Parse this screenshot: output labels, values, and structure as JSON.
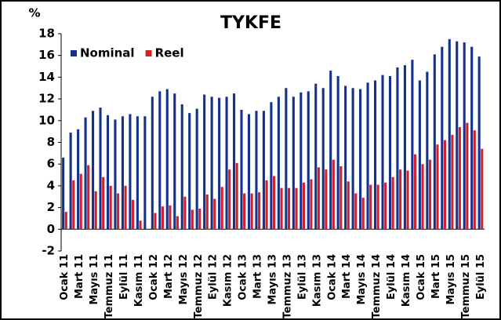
{
  "chart_data": {
    "type": "bar",
    "title": "TYKFE",
    "y_label": "%",
    "categories": [
      "Ocak 11",
      null,
      "Mart 11",
      null,
      "Mayıs 11",
      null,
      "Temmuz 11",
      null,
      "Eylül 11",
      null,
      "Kasım 11",
      null,
      "Ocak 12",
      null,
      "Mart 12",
      null,
      "Mayıs 12",
      null,
      "Temmuz 12",
      null,
      "Eylül 12",
      null,
      "Kasım 12",
      null,
      "Ocak 13",
      null,
      "Mart 13",
      null,
      "Mayıs 13",
      null,
      "Temmuz 13",
      null,
      "Eylül 13",
      null,
      "Kasım 13",
      null,
      "Ocak 14",
      null,
      "Mart 14",
      null,
      "Mayıs 14",
      null,
      "Temmuz 14",
      null,
      "Eylül 14",
      null,
      "Kasım 14",
      null,
      "Ocak 15",
      null,
      "Mart 15",
      null,
      "Mayıs 15",
      null,
      "Temmuz 15",
      null,
      "Eylül 15"
    ],
    "series": [
      {
        "name": "Nominal",
        "color": "#14328c",
        "values": [
          6.6,
          8.9,
          9.2,
          10.3,
          10.9,
          11.2,
          10.5,
          10.1,
          10.4,
          10.6,
          10.4,
          10.4,
          12.2,
          12.7,
          12.9,
          12.5,
          11.5,
          10.7,
          11.1,
          12.4,
          12.2,
          12.1,
          12.2,
          12.5,
          11.0,
          10.6,
          10.9,
          10.9,
          11.7,
          12.2,
          13.0,
          12.2,
          12.6,
          12.7,
          13.4,
          13.0,
          14.6,
          14.1,
          13.2,
          13.0,
          12.9,
          13.5,
          13.7,
          14.2,
          14.1,
          14.9,
          15.1,
          15.6,
          13.7,
          14.5,
          16.1,
          16.8,
          17.5,
          17.3,
          17.2,
          16.8,
          15.9
        ]
      },
      {
        "name": "Reel",
        "color": "#d3202a",
        "values": [
          1.6,
          4.5,
          5.1,
          5.9,
          3.5,
          4.8,
          4.0,
          3.3,
          4.0,
          2.7,
          0.8,
          0,
          1.5,
          2.1,
          2.2,
          1.2,
          3.0,
          1.8,
          1.9,
          3.2,
          2.8,
          3.9,
          5.5,
          6.1,
          3.3,
          3.3,
          3.4,
          4.5,
          4.9,
          3.8,
          3.8,
          3.8,
          4.3,
          4.6,
          5.7,
          5.5,
          6.4,
          5.8,
          4.4,
          3.3,
          2.9,
          4.1,
          4.1,
          4.3,
          4.8,
          5.5,
          5.4,
          6.9,
          6.0,
          6.4,
          7.8,
          8.2,
          8.7,
          9.4,
          9.8,
          9.1,
          7.4
        ]
      }
    ],
    "ylim": [
      -2,
      18
    ],
    "yticks": [
      -2,
      0,
      2,
      4,
      6,
      8,
      10,
      12,
      14,
      16,
      18
    ],
    "grid": false,
    "legend": "upper left"
  }
}
